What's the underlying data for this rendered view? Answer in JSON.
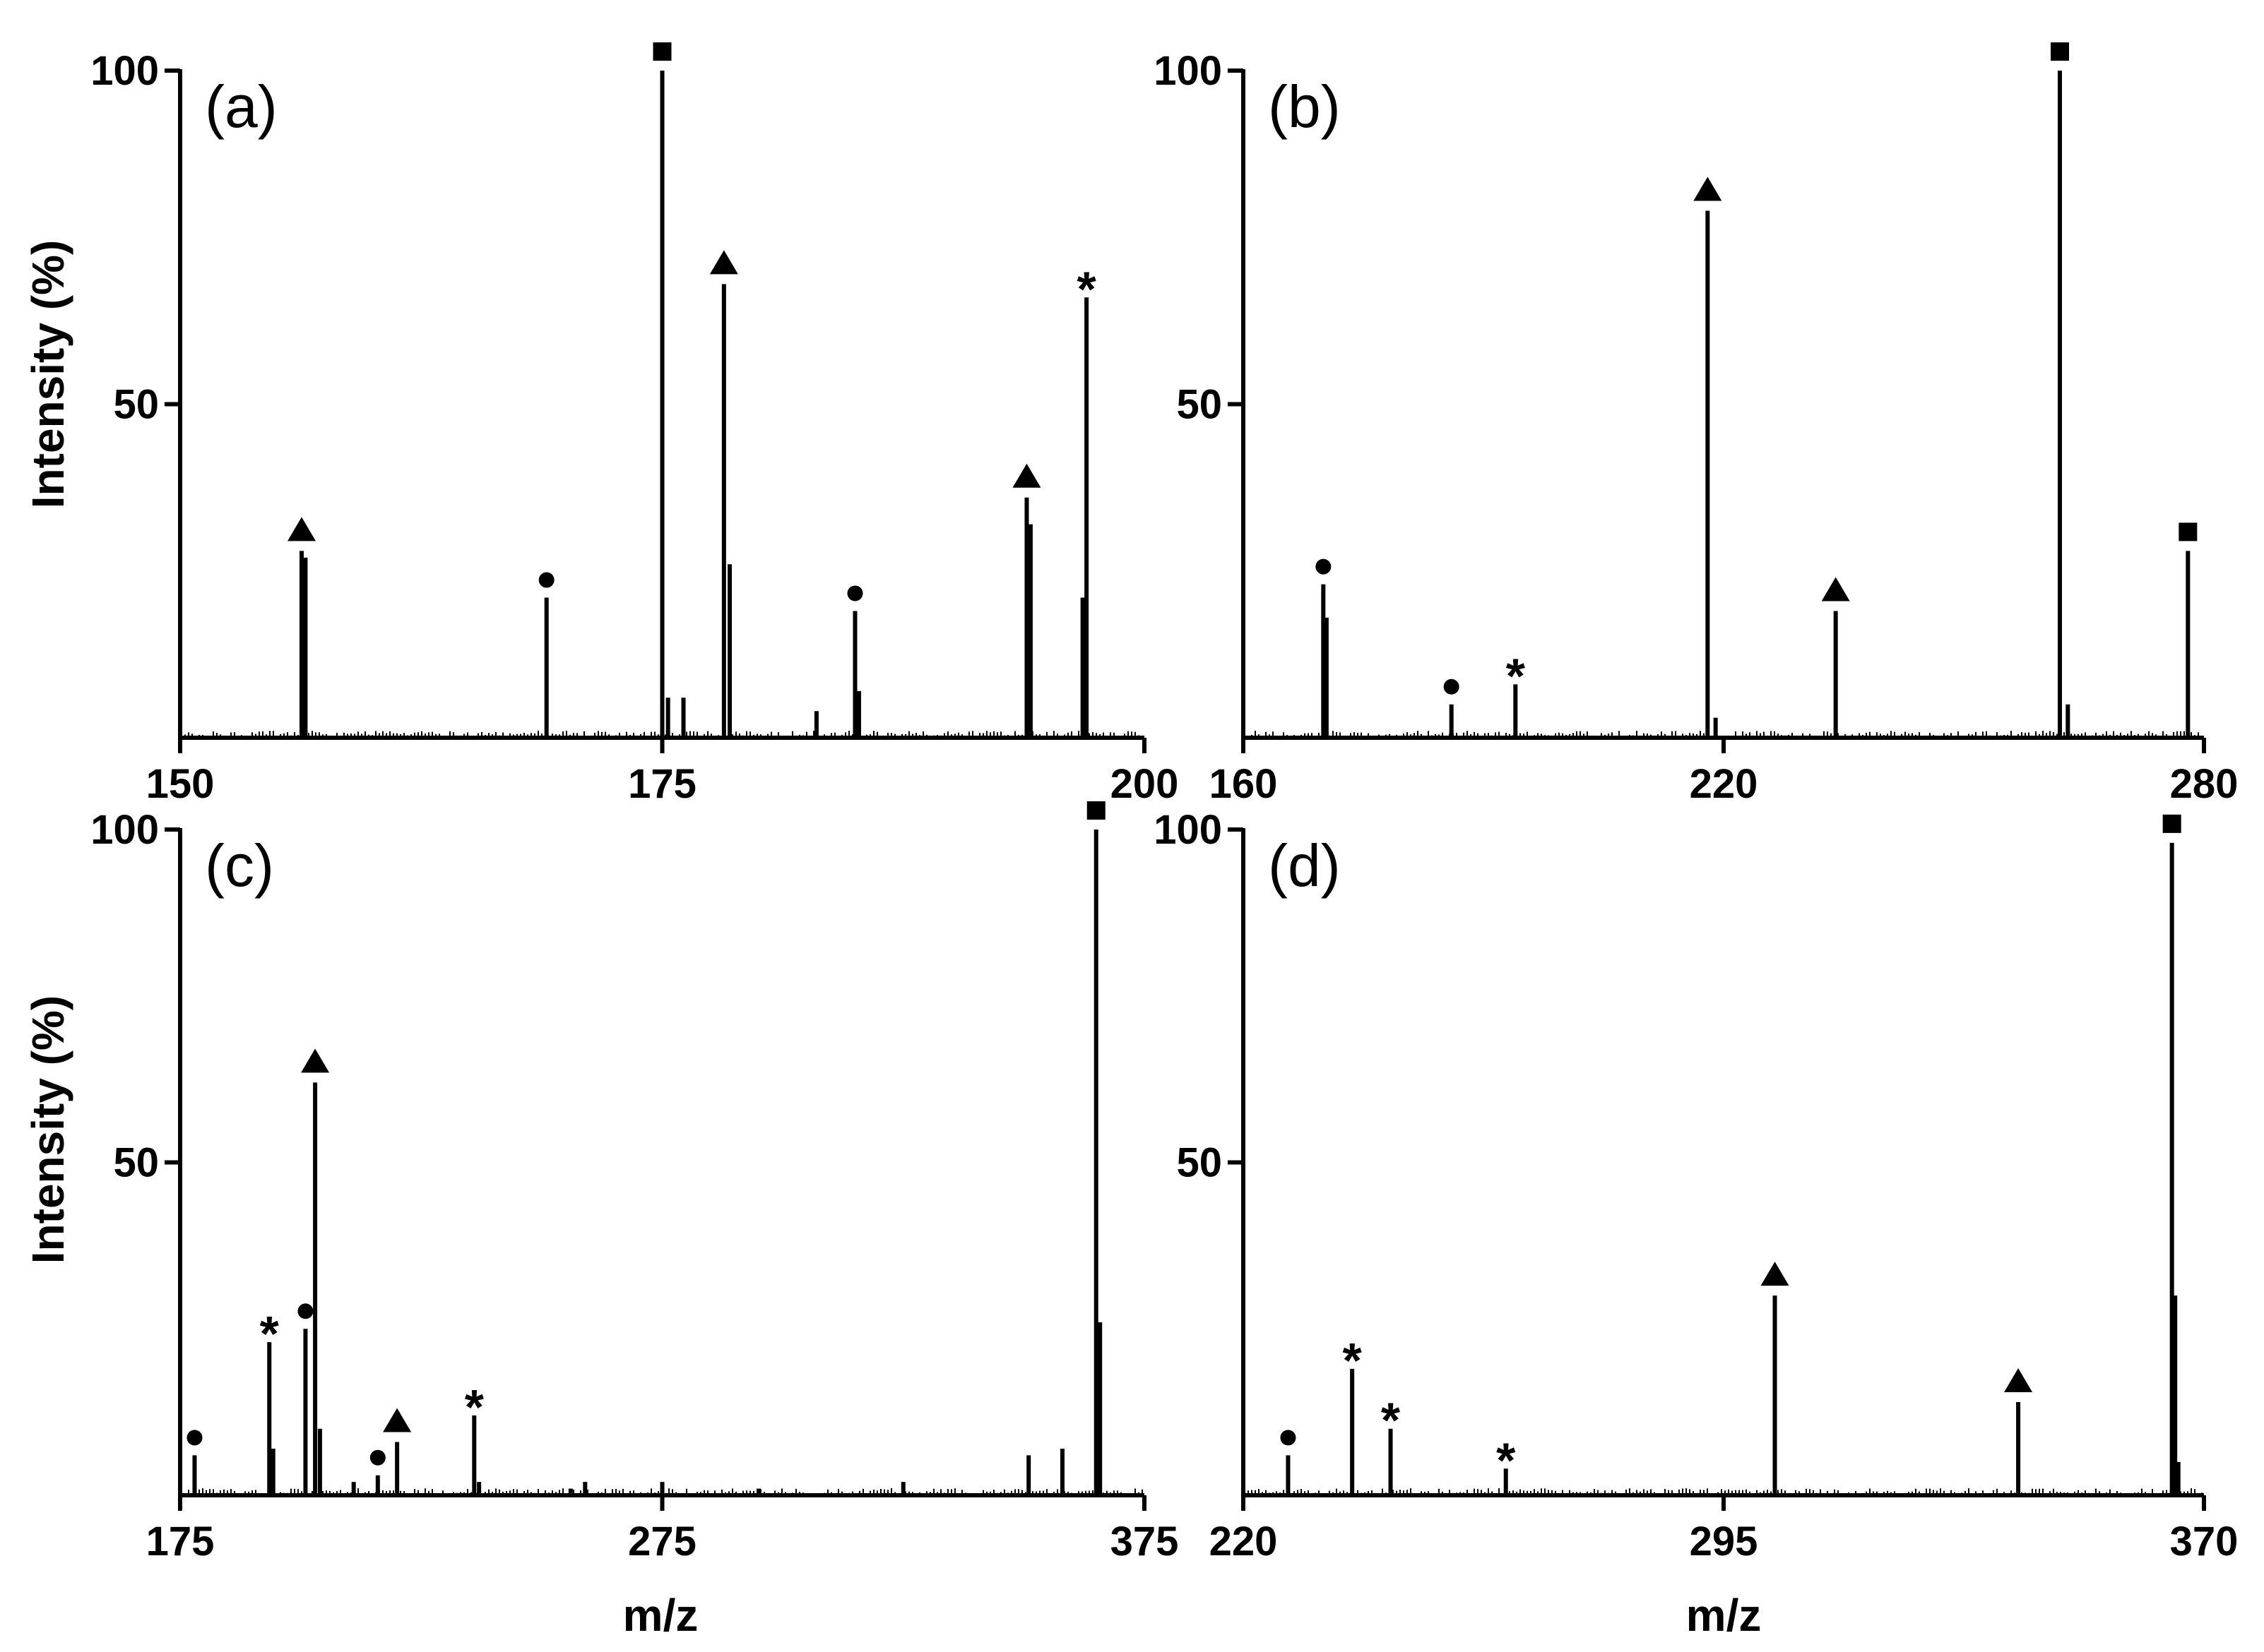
{
  "figure": {
    "xlabel": "m/z",
    "ylabel": "Intensity (%)"
  },
  "chart_data": [
    {
      "type": "bar",
      "panel": "(a)",
      "xlim": [
        150,
        200
      ],
      "ylim": [
        0,
        100
      ],
      "xticks": [
        "150",
        "175",
        "200"
      ],
      "yticks": [
        "50",
        "100"
      ],
      "xlabel": "",
      "ylabel": "Intensity (%)",
      "peaks": [
        {
          "x": 156.3,
          "y": 28,
          "marker": "triangle"
        },
        {
          "x": 156.5,
          "y": 27
        },
        {
          "x": 169.0,
          "y": 21,
          "marker": "circle"
        },
        {
          "x": 175.0,
          "y": 100,
          "marker": "square"
        },
        {
          "x": 175.3,
          "y": 6
        },
        {
          "x": 176.1,
          "y": 6
        },
        {
          "x": 178.2,
          "y": 68,
          "marker": "triangle"
        },
        {
          "x": 178.5,
          "y": 26
        },
        {
          "x": 183.0,
          "y": 4
        },
        {
          "x": 185.0,
          "y": 19,
          "marker": "circle"
        },
        {
          "x": 185.2,
          "y": 7
        },
        {
          "x": 193.9,
          "y": 36,
          "marker": "triangle"
        },
        {
          "x": 194.1,
          "y": 32
        },
        {
          "x": 196.8,
          "y": 21
        },
        {
          "x": 197.0,
          "y": 66,
          "marker": "asterisk"
        }
      ]
    },
    {
      "type": "bar",
      "panel": "(b)",
      "xlim": [
        160,
        280
      ],
      "ylim": [
        0,
        100
      ],
      "xticks": [
        "160",
        "220",
        "280"
      ],
      "yticks": [
        "50",
        "100"
      ],
      "xlabel": "",
      "ylabel": "",
      "peaks": [
        {
          "x": 170.0,
          "y": 23,
          "marker": "circle"
        },
        {
          "x": 170.4,
          "y": 18
        },
        {
          "x": 186.0,
          "y": 5,
          "marker": "circle"
        },
        {
          "x": 194.0,
          "y": 8,
          "marker": "asterisk"
        },
        {
          "x": 218.0,
          "y": 79,
          "marker": "triangle"
        },
        {
          "x": 219.0,
          "y": 3
        },
        {
          "x": 234.0,
          "y": 19,
          "marker": "triangle"
        },
        {
          "x": 262.0,
          "y": 100,
          "marker": "square"
        },
        {
          "x": 263.0,
          "y": 5
        },
        {
          "x": 278.0,
          "y": 28,
          "marker": "square"
        }
      ]
    },
    {
      "type": "bar",
      "panel": "(c)",
      "xlim": [
        175,
        375
      ],
      "ylim": [
        0,
        100
      ],
      "xticks": [
        "175",
        "275",
        "375"
      ],
      "yticks": [
        "50",
        "100"
      ],
      "xlabel": "m/z",
      "ylabel": "Intensity (%)",
      "peaks": [
        {
          "x": 178.0,
          "y": 6,
          "marker": "circle"
        },
        {
          "x": 193.5,
          "y": 23,
          "marker": "asterisk"
        },
        {
          "x": 194.3,
          "y": 7
        },
        {
          "x": 201.0,
          "y": 25,
          "marker": "circle"
        },
        {
          "x": 203.0,
          "y": 62,
          "marker": "triangle"
        },
        {
          "x": 204.0,
          "y": 10
        },
        {
          "x": 211.0,
          "y": 2
        },
        {
          "x": 216.0,
          "y": 3,
          "marker": "circle"
        },
        {
          "x": 220.0,
          "y": 8,
          "marker": "triangle"
        },
        {
          "x": 236.0,
          "y": 12,
          "marker": "asterisk"
        },
        {
          "x": 237.0,
          "y": 2
        },
        {
          "x": 256.0,
          "y": 1
        },
        {
          "x": 259.0,
          "y": 2
        },
        {
          "x": 275.0,
          "y": 2
        },
        {
          "x": 295.0,
          "y": 1
        },
        {
          "x": 325.0,
          "y": 2
        },
        {
          "x": 351.0,
          "y": 6
        },
        {
          "x": 358.0,
          "y": 7
        },
        {
          "x": 365.0,
          "y": 100,
          "marker": "square"
        },
        {
          "x": 365.8,
          "y": 26
        }
      ]
    },
    {
      "type": "bar",
      "panel": "(d)",
      "xlim": [
        220,
        370
      ],
      "ylim": [
        0,
        100
      ],
      "xticks": [
        "220",
        "295",
        "370"
      ],
      "yticks": [
        "50",
        "100"
      ],
      "xlabel": "m/z",
      "ylabel": "",
      "peaks": [
        {
          "x": 227.0,
          "y": 6,
          "marker": "circle"
        },
        {
          "x": 237.0,
          "y": 19,
          "marker": "asterisk"
        },
        {
          "x": 243.0,
          "y": 10,
          "marker": "asterisk"
        },
        {
          "x": 261.0,
          "y": 4,
          "marker": "asterisk"
        },
        {
          "x": 303.0,
          "y": 30,
          "marker": "triangle"
        },
        {
          "x": 341.0,
          "y": 14,
          "marker": "triangle"
        },
        {
          "x": 365.0,
          "y": 98,
          "marker": "square"
        },
        {
          "x": 365.5,
          "y": 30
        },
        {
          "x": 366.0,
          "y": 5
        }
      ]
    }
  ]
}
